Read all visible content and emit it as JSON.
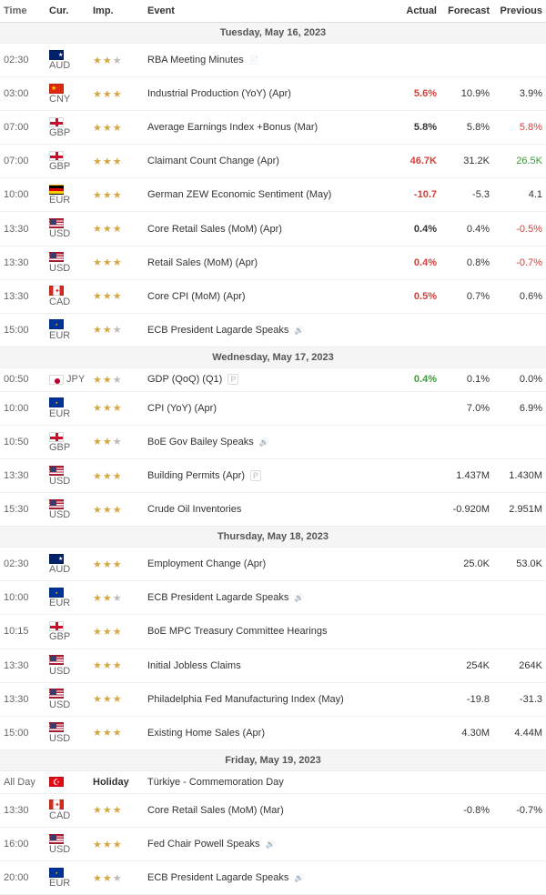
{
  "headers": {
    "time": "Time",
    "cur": "Cur.",
    "imp": "Imp.",
    "event": "Event",
    "actual": "Actual",
    "forecast": "Forecast",
    "previous": "Previous"
  },
  "colors": {
    "red": "#d43f3a",
    "green": "#3c9a3c",
    "header_bg": "#f5f5f5",
    "border": "#eee"
  },
  "days": [
    {
      "label": "Tuesday, May 16, 2023",
      "rows": [
        {
          "time": "02:30",
          "cur": "AUD",
          "flag": "AUD",
          "imp": 2,
          "event": "RBA Meeting Minutes",
          "icon": "report",
          "actual": "",
          "forecast": "",
          "previous": ""
        },
        {
          "time": "03:00",
          "cur": "CNY",
          "flag": "CNY",
          "imp": 3,
          "event": "Industrial Production (YoY) (Apr)",
          "actual": "5.6%",
          "actual_color": "red",
          "forecast": "10.9%",
          "previous": "3.9%"
        },
        {
          "time": "07:00",
          "cur": "GBP",
          "flag": "GBP",
          "imp": 3,
          "event": "Average Earnings Index +Bonus (Mar)",
          "actual": "5.8%",
          "forecast": "5.8%",
          "previous": "5.8%",
          "previous_color": "red"
        },
        {
          "time": "07:00",
          "cur": "GBP",
          "flag": "GBP",
          "imp": 3,
          "event": "Claimant Count Change (Apr)",
          "actual": "46.7K",
          "actual_color": "red",
          "forecast": "31.2K",
          "previous": "26.5K",
          "previous_color": "green"
        },
        {
          "time": "10:00",
          "cur": "EUR",
          "flag": "DEU",
          "imp": 3,
          "event": "German ZEW Economic Sentiment (May)",
          "actual": "-10.7",
          "actual_color": "red",
          "forecast": "-5.3",
          "previous": "4.1"
        },
        {
          "time": "13:30",
          "cur": "USD",
          "flag": "USD",
          "imp": 3,
          "event": "Core Retail Sales (MoM) (Apr)",
          "actual": "0.4%",
          "forecast": "0.4%",
          "previous": "-0.5%",
          "previous_color": "red"
        },
        {
          "time": "13:30",
          "cur": "USD",
          "flag": "USD",
          "imp": 3,
          "event": "Retail Sales (MoM) (Apr)",
          "actual": "0.4%",
          "actual_color": "red",
          "forecast": "0.8%",
          "previous": "-0.7%",
          "previous_color": "red"
        },
        {
          "time": "13:30",
          "cur": "CAD",
          "flag": "CAD",
          "imp": 3,
          "event": "Core CPI (MoM) (Apr)",
          "actual": "0.5%",
          "actual_color": "red",
          "forecast": "0.7%",
          "previous": "0.6%"
        },
        {
          "time": "15:00",
          "cur": "EUR",
          "flag": "EUR",
          "imp": 2,
          "event": "ECB President Lagarde Speaks",
          "icon": "speaker",
          "actual": "",
          "forecast": "",
          "previous": ""
        }
      ]
    },
    {
      "label": "Wednesday, May 17, 2023",
      "rows": [
        {
          "time": "00:50",
          "cur": "JPY",
          "flag": "JPY",
          "imp": 2,
          "event": "GDP (QoQ) (Q1)",
          "icon": "prelim",
          "actual": "0.4%",
          "actual_color": "green",
          "forecast": "0.1%",
          "previous": "0.0%"
        },
        {
          "time": "10:00",
          "cur": "EUR",
          "flag": "EUR",
          "imp": 3,
          "event": "CPI (YoY) (Apr)",
          "actual": "",
          "forecast": "7.0%",
          "previous": "6.9%"
        },
        {
          "time": "10:50",
          "cur": "GBP",
          "flag": "GBP",
          "imp": 2,
          "event": "BoE Gov Bailey Speaks",
          "icon": "speaker",
          "actual": "",
          "forecast": "",
          "previous": ""
        },
        {
          "time": "13:30",
          "cur": "USD",
          "flag": "USD",
          "imp": 3,
          "event": "Building Permits (Apr)",
          "icon": "prelim",
          "actual": "",
          "forecast": "1.437M",
          "previous": "1.430M"
        },
        {
          "time": "15:30",
          "cur": "USD",
          "flag": "USD",
          "imp": 3,
          "event": "Crude Oil Inventories",
          "actual": "",
          "forecast": "-0.920M",
          "previous": "2.951M"
        }
      ]
    },
    {
      "label": "Thursday, May 18, 2023",
      "rows": [
        {
          "time": "02:30",
          "cur": "AUD",
          "flag": "AUD",
          "imp": 3,
          "event": "Employment Change (Apr)",
          "actual": "",
          "forecast": "25.0K",
          "previous": "53.0K"
        },
        {
          "time": "10:00",
          "cur": "EUR",
          "flag": "EUR",
          "imp": 2,
          "event": "ECB President Lagarde Speaks",
          "icon": "speaker",
          "actual": "",
          "forecast": "",
          "previous": ""
        },
        {
          "time": "10:15",
          "cur": "GBP",
          "flag": "GBP",
          "imp": 3,
          "event": "BoE MPC Treasury Committee Hearings",
          "actual": "",
          "forecast": "",
          "previous": ""
        },
        {
          "time": "13:30",
          "cur": "USD",
          "flag": "USD",
          "imp": 3,
          "event": "Initial Jobless Claims",
          "actual": "",
          "forecast": "254K",
          "previous": "264K"
        },
        {
          "time": "13:30",
          "cur": "USD",
          "flag": "USD",
          "imp": 3,
          "event": "Philadelphia Fed Manufacturing Index (May)",
          "actual": "",
          "forecast": "-19.8",
          "previous": "-31.3"
        },
        {
          "time": "15:00",
          "cur": "USD",
          "flag": "USD",
          "imp": 3,
          "event": "Existing Home Sales (Apr)",
          "actual": "",
          "forecast": "4.30M",
          "previous": "4.44M"
        }
      ]
    },
    {
      "label": "Friday, May 19, 2023",
      "rows": [
        {
          "time": "All Day",
          "cur": "",
          "flag": "TRY",
          "imp_label": "Holiday",
          "event": "Türkiye - Commemoration Day",
          "actual": "",
          "forecast": "",
          "previous": ""
        },
        {
          "time": "13:30",
          "cur": "CAD",
          "flag": "CAD",
          "imp": 3,
          "event": "Core Retail Sales (MoM) (Mar)",
          "actual": "",
          "forecast": "-0.8%",
          "previous": "-0.7%"
        },
        {
          "time": "16:00",
          "cur": "USD",
          "flag": "USD",
          "imp": 3,
          "event": "Fed Chair Powell Speaks",
          "icon": "speaker",
          "actual": "",
          "forecast": "",
          "previous": ""
        },
        {
          "time": "20:00",
          "cur": "EUR",
          "flag": "EUR",
          "imp": 2,
          "event": "ECB President Lagarde Speaks",
          "icon": "speaker",
          "actual": "",
          "forecast": "",
          "previous": ""
        }
      ]
    }
  ]
}
